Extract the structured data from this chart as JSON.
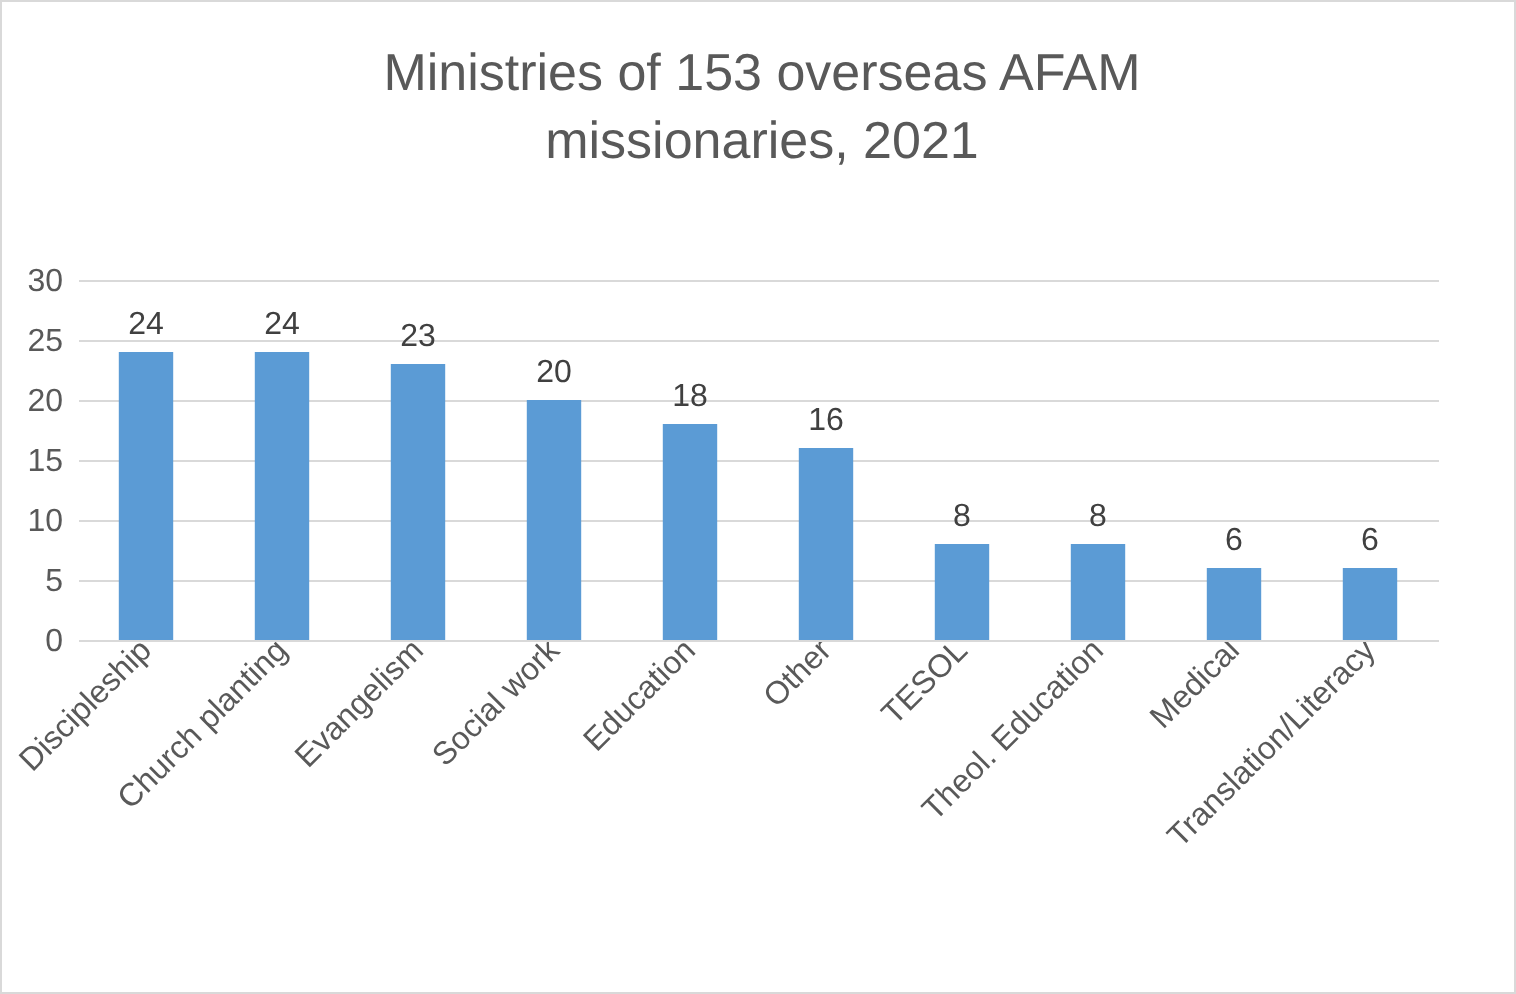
{
  "chart_data": {
    "type": "bar",
    "title": "Ministries of 153 overseas AFAM missionaries, 2021",
    "categories": [
      "Discipleship",
      "Church planting",
      "Evangelism",
      "Social work",
      "Education",
      "Other",
      "TESOL",
      "Theol. Education",
      "Medical",
      "Translation/Literacy"
    ],
    "values": [
      24,
      24,
      23,
      20,
      18,
      16,
      8,
      8,
      6,
      6
    ],
    "color": "#5b9bd5",
    "ylim": [
      0,
      30
    ],
    "yticks": [
      0,
      5,
      10,
      15,
      20,
      25,
      30
    ],
    "grid": "y",
    "data_labels": true
  }
}
